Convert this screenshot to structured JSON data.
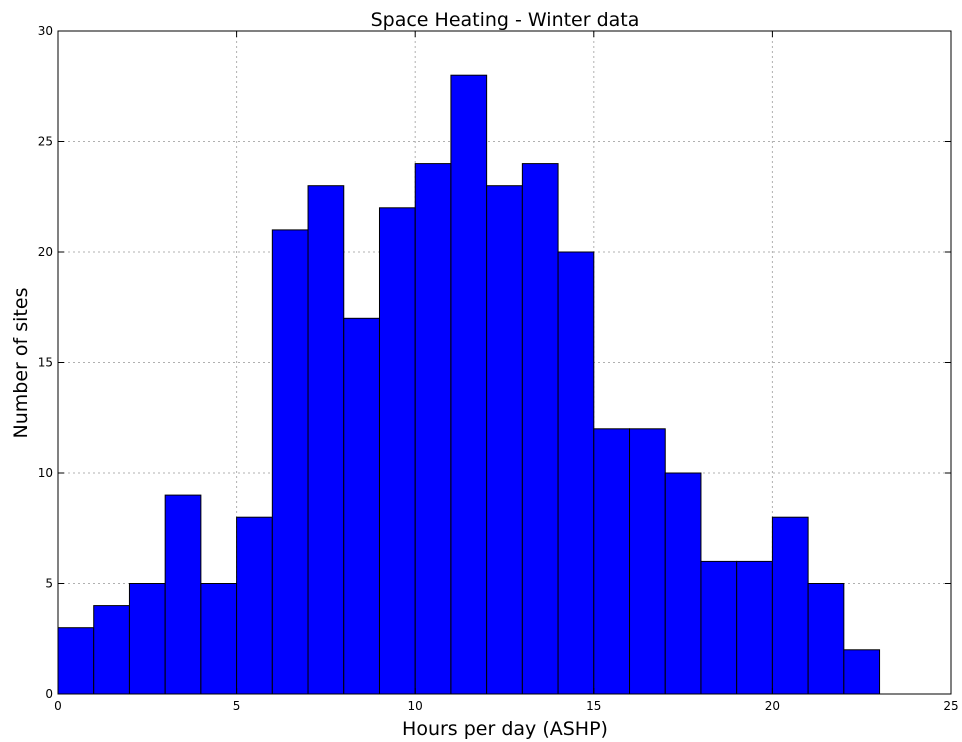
{
  "chart_data": {
    "type": "bar",
    "title": "Space Heating - Winter data",
    "xlabel": "Hours per day (ASHP)",
    "ylabel": "Number of sites",
    "xlim": [
      0,
      25
    ],
    "ylim": [
      0,
      30
    ],
    "bin_width": 1,
    "bins": [
      {
        "start": 0,
        "count": 3
      },
      {
        "start": 1,
        "count": 4
      },
      {
        "start": 2,
        "count": 5
      },
      {
        "start": 3,
        "count": 9
      },
      {
        "start": 4,
        "count": 5
      },
      {
        "start": 5,
        "count": 8
      },
      {
        "start": 6,
        "count": 21
      },
      {
        "start": 7,
        "count": 23
      },
      {
        "start": 8,
        "count": 17
      },
      {
        "start": 9,
        "count": 22
      },
      {
        "start": 10,
        "count": 24
      },
      {
        "start": 11,
        "count": 28
      },
      {
        "start": 12,
        "count": 23
      },
      {
        "start": 13,
        "count": 24
      },
      {
        "start": 14,
        "count": 20
      },
      {
        "start": 15,
        "count": 12
      },
      {
        "start": 16,
        "count": 12
      },
      {
        "start": 17,
        "count": 10
      },
      {
        "start": 18,
        "count": 6
      },
      {
        "start": 19,
        "count": 6
      },
      {
        "start": 20,
        "count": 8
      },
      {
        "start": 21,
        "count": 5
      },
      {
        "start": 22,
        "count": 2
      },
      {
        "start": 23,
        "count": 0
      }
    ],
    "x_ticks": [
      "0",
      "5",
      "10",
      "15",
      "20",
      "25"
    ],
    "y_ticks": [
      "0",
      "5",
      "10",
      "15",
      "20",
      "25",
      "30"
    ],
    "grid": true,
    "bar_color": "#0000ff",
    "edge_color": "#000000"
  }
}
